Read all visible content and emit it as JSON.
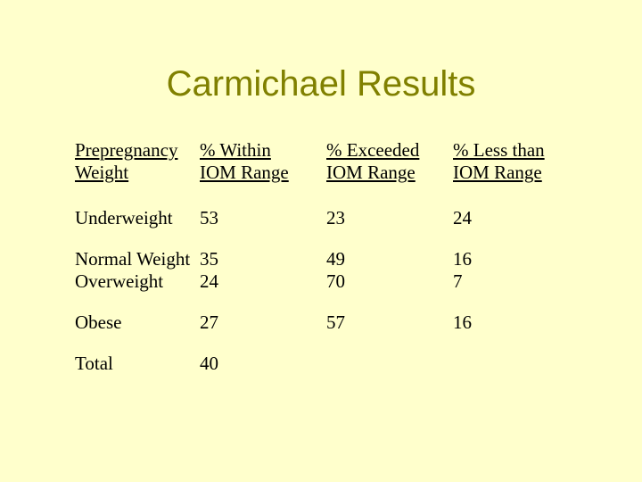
{
  "title": "Carmichael Results",
  "table": {
    "headers": [
      [
        "Prepregnancy",
        "Weight"
      ],
      [
        "% Within",
        "IOM Range"
      ],
      [
        "% Exceeded",
        "IOM Range"
      ],
      [
        "% Less than",
        "IOM Range"
      ]
    ],
    "rows": [
      [
        "Underweight",
        "53",
        "23",
        "24"
      ],
      [
        "Normal Weight",
        "35",
        "49",
        "16"
      ],
      [
        "Overweight",
        "24",
        "70",
        "7"
      ],
      [
        "Obese",
        "27",
        "57",
        "16"
      ],
      [
        "Total",
        "40",
        "",
        ""
      ]
    ]
  }
}
